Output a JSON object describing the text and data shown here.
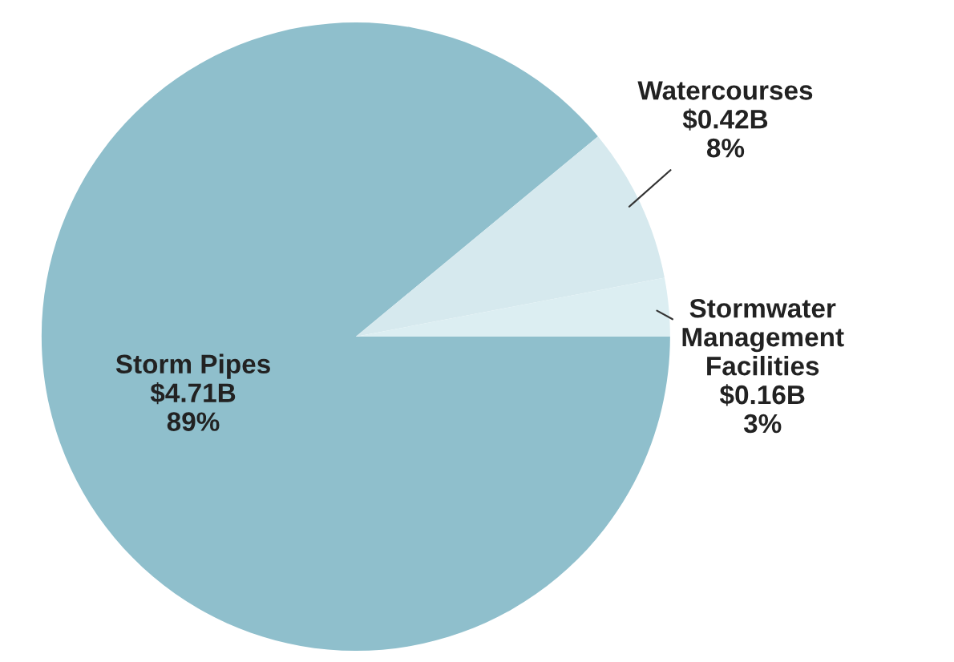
{
  "chart_data": {
    "type": "pie",
    "categories": [
      "Storm Pipes",
      "Watercourses",
      "Stormwater\nManagement\nFacilities"
    ],
    "values": [
      89,
      8,
      3
    ],
    "value_labels": [
      "$4.71B\n89%",
      "$0.42B\n8%",
      "$0.16B\n3%"
    ],
    "colors": [
      "#8fbfcc",
      "#d6e9ee",
      "#dceef2"
    ],
    "legend": false
  }
}
